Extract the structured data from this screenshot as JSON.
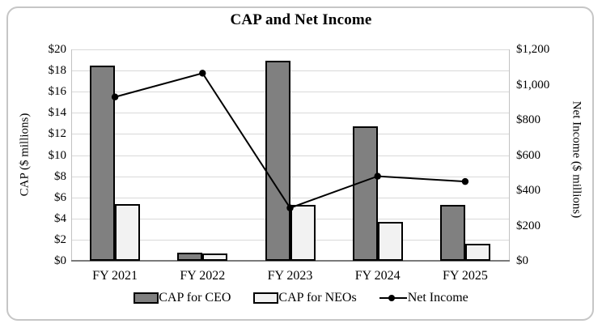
{
  "chart_data": {
    "type": "bar",
    "subtype": "grouped-bars-with-line-overlay",
    "title": "CAP and Net Income",
    "categories": [
      "FY 2021",
      "FY 2022",
      "FY 2023",
      "FY 2024",
      "FY 2025"
    ],
    "series": [
      {
        "name": "CAP for CEO",
        "type": "bar",
        "axis": "left",
        "values": [
          18.5,
          0.8,
          18.9,
          12.7,
          5.3
        ],
        "fill": "#808080"
      },
      {
        "name": "CAP for NEOs",
        "type": "bar",
        "axis": "left",
        "values": [
          5.4,
          0.7,
          5.3,
          3.7,
          1.6
        ],
        "fill": "#f2f2f2"
      },
      {
        "name": "Net Income",
        "type": "line",
        "axis": "right",
        "values": [
          930,
          1065,
          300,
          480,
          450
        ],
        "color": "#000000"
      }
    ],
    "left_axis": {
      "label": "CAP ($ millions)",
      "min": 0,
      "max": 20,
      "step": 2,
      "ticks": [
        "$0",
        "$2",
        "$4",
        "$6",
        "$8",
        "$10",
        "$12",
        "$14",
        "$16",
        "$18",
        "$20"
      ]
    },
    "right_axis": {
      "label": "Net Income ($ millions)",
      "min": 0,
      "max": 1200,
      "step": 200,
      "ticks": [
        "$0",
        "$200",
        "$400",
        "$600",
        "$800",
        "$1,000",
        "$1,200"
      ]
    },
    "grid": true,
    "legend_position": "bottom",
    "colors": {
      "bar_border": "#000000",
      "gridline": "#d9d9d9",
      "axis_line": "#7a7a7a",
      "panel_border": "#c6c6c6"
    }
  }
}
